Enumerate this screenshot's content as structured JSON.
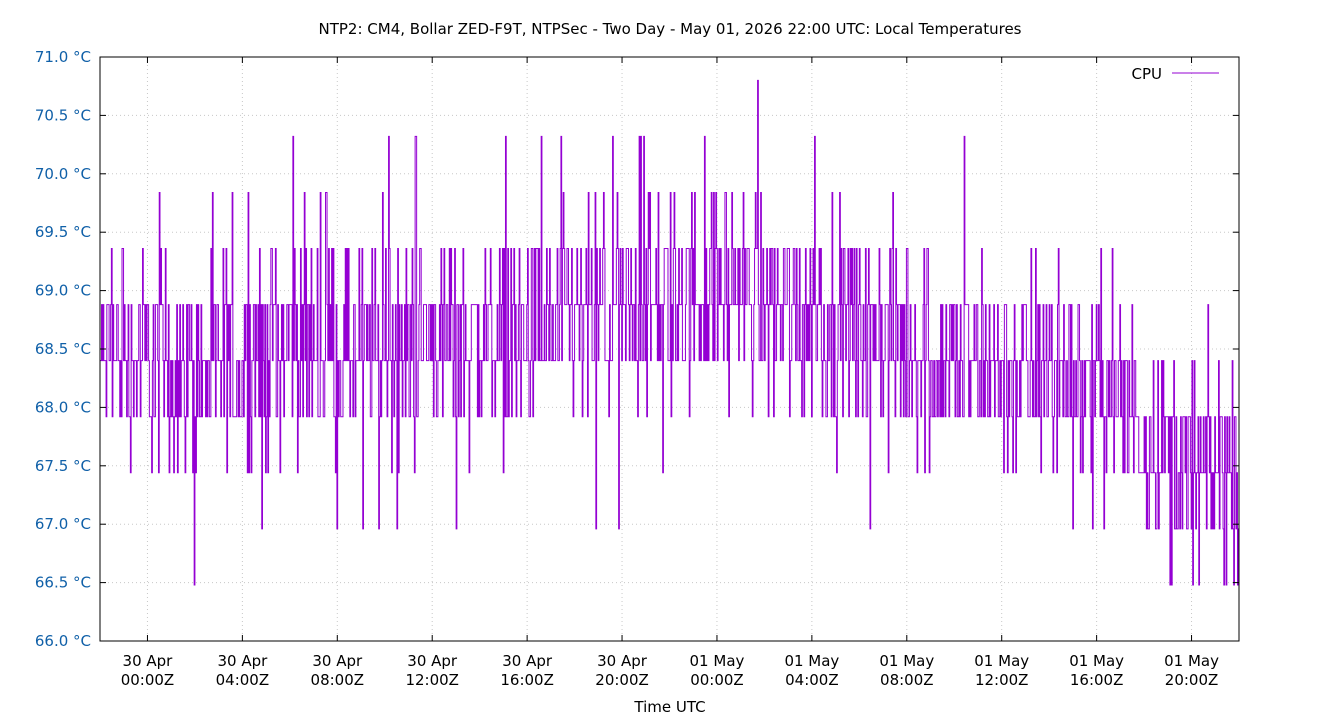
{
  "chart_data": {
    "type": "line",
    "title": "NTP2: CM4, Bollar ZED-F9T, NTPSec - Two Day - May 01, 2026 22:00 UTC: Local Temperatures",
    "xlabel": "Time UTC",
    "ylabel": "",
    "y_unit": "°C",
    "ylim": [
      66.0,
      71.0
    ],
    "y_ticks": [
      66.0,
      66.5,
      67.0,
      67.5,
      68.0,
      68.5,
      69.0,
      69.5,
      70.0,
      70.5,
      71.0
    ],
    "y_tick_labels": [
      "66.0 °C",
      "66.5 °C",
      "67.0 °C",
      "67.5 °C",
      "68.0 °C",
      "68.5 °C",
      "69.0 °C",
      "69.5 °C",
      "70.0 °C",
      "70.5 °C",
      "71.0 °C"
    ],
    "xlim": [
      "2026-04-29T22:00Z",
      "2026-05-01T22:00Z"
    ],
    "x_ticks": [
      "2026-04-30T00:00Z",
      "2026-04-30T04:00Z",
      "2026-04-30T08:00Z",
      "2026-04-30T12:00Z",
      "2026-04-30T16:00Z",
      "2026-04-30T20:00Z",
      "2026-05-01T00:00Z",
      "2026-05-01T04:00Z",
      "2026-05-01T08:00Z",
      "2026-05-01T12:00Z",
      "2026-05-01T16:00Z",
      "2026-05-01T20:00Z"
    ],
    "x_tick_labels": [
      [
        "30 Apr",
        "00:00Z"
      ],
      [
        "30 Apr",
        "04:00Z"
      ],
      [
        "30 Apr",
        "08:00Z"
      ],
      [
        "30 Apr",
        "12:00Z"
      ],
      [
        "30 Apr",
        "16:00Z"
      ],
      [
        "30 Apr",
        "20:00Z"
      ],
      [
        "01 May",
        "00:00Z"
      ],
      [
        "01 May",
        "04:00Z"
      ],
      [
        "01 May",
        "08:00Z"
      ],
      [
        "01 May",
        "12:00Z"
      ],
      [
        "01 May",
        "16:00Z"
      ],
      [
        "01 May",
        "20:00Z"
      ]
    ],
    "grid": true,
    "legend_position": "top-right",
    "series": [
      {
        "name": "CPU",
        "color": "#9400d3",
        "x": [
          "2026-04-29T22:00Z",
          "2026-04-30T00:00Z",
          "2026-04-30T02:00Z",
          "2026-04-30T04:00Z",
          "2026-04-30T06:00Z",
          "2026-04-30T08:00Z",
          "2026-04-30T10:00Z",
          "2026-04-30T12:00Z",
          "2026-04-30T14:00Z",
          "2026-04-30T16:00Z",
          "2026-04-30T18:00Z",
          "2026-04-30T20:00Z",
          "2026-04-30T22:00Z",
          "2026-05-01T00:00Z",
          "2026-05-01T02:00Z",
          "2026-05-01T04:00Z",
          "2026-05-01T06:00Z",
          "2026-05-01T08:00Z",
          "2026-05-01T10:00Z",
          "2026-05-01T12:00Z",
          "2026-05-01T14:00Z",
          "2026-05-01T16:00Z",
          "2026-05-01T18:00Z",
          "2026-05-01T20:00Z",
          "2026-05-01T22:00Z"
        ],
        "values": [
          68.4,
          68.4,
          68.3,
          68.4,
          68.6,
          68.5,
          68.5,
          68.6,
          68.6,
          68.6,
          68.7,
          68.8,
          68.9,
          69.0,
          68.9,
          68.8,
          68.7,
          68.5,
          68.4,
          68.3,
          68.3,
          68.2,
          67.8,
          67.4,
          67.5
        ],
        "min": [
          67.2,
          66.7,
          66.7,
          67.2,
          66.7,
          67.2,
          66.7,
          67.2,
          66.7,
          67.2,
          67.2,
          67.2,
          67.7,
          67.7,
          67.7,
          67.2,
          67.2,
          67.2,
          67.7,
          67.7,
          66.7,
          66.2,
          67.2,
          66.2,
          66.7
        ],
        "max": [
          69.6,
          69.6,
          70.1,
          69.6,
          70.6,
          69.6,
          70.1,
          70.1,
          70.1,
          70.1,
          70.1,
          70.1,
          70.1,
          70.6,
          70.6,
          70.1,
          70.1,
          70.1,
          70.1,
          70.1,
          69.6,
          69.6,
          68.7,
          69.6,
          69.1
        ],
        "step": 0.48
      }
    ]
  }
}
